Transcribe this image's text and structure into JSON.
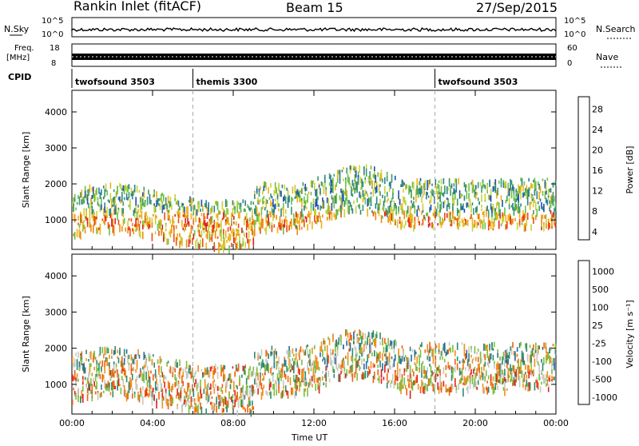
{
  "header": {
    "site": "Rankin Inlet (fitACF)",
    "beam": "Beam 15",
    "date": "27/Sep/2015"
  },
  "aux": {
    "nsky_label": "N.Sky",
    "nsky_ticks": [
      "10^5",
      "10^0"
    ],
    "nsearch_label": "N.Search",
    "nsearch_ticks": [
      "10^5",
      "10^0"
    ],
    "freq_label_1": "Freq.",
    "freq_label_2": "[MHz]",
    "freq_ticks": [
      "18",
      "8"
    ],
    "nave_label": "Nave",
    "nave_ticks": [
      "60",
      "0"
    ],
    "cpid_label": "CPID",
    "cpid_segments": [
      {
        "label": "twofsound 3503",
        "start_h": 0.0
      },
      {
        "label": "themis 3300",
        "start_h": 6.0
      },
      {
        "label": "twofsound 3503",
        "start_h": 18.0
      }
    ]
  },
  "chart_data": [
    {
      "type": "heatmap",
      "title": "",
      "xlabel": "Time UT",
      "ylabel": "Slant Range [km]",
      "xlim": [
        0,
        24
      ],
      "ylim": [
        180,
        4600
      ],
      "xticks": [
        "00:00",
        "04:00",
        "08:00",
        "12:00",
        "16:00",
        "20:00",
        "00:00"
      ],
      "yticks": [
        1000,
        2000,
        3000,
        4000
      ],
      "colorbar": {
        "label": "Power [dB]",
        "ticks": [
          "28",
          "24",
          "20",
          "16",
          "12",
          "8",
          "4"
        ],
        "range": [
          0,
          32
        ]
      },
      "colors": [
        "#1a1aff",
        "#1f4fb0",
        "#2f7f8f",
        "#3c9a6a",
        "#6cc04a",
        "#c8d23a",
        "#f0b01a",
        "#f08a10",
        "#e85010",
        "#e02020"
      ]
    },
    {
      "type": "heatmap",
      "title": "",
      "xlabel": "Time UT",
      "ylabel": "Slant Range [km]",
      "xlim": [
        0,
        24
      ],
      "ylim": [
        180,
        4600
      ],
      "xticks": [
        "00:00",
        "04:00",
        "08:00",
        "12:00",
        "16:00",
        "20:00",
        "00:00"
      ],
      "yticks": [
        1000,
        2000,
        3000,
        4000
      ],
      "colorbar": {
        "label": "Velocity [m s⁻¹]",
        "ticks": [
          "1000",
          "500",
          "100",
          "25",
          "-25",
          "-100",
          "-500",
          "-1000"
        ]
      },
      "colors": [
        "#1a3fd0",
        "#2a6aa0",
        "#2f8a70",
        "#7ac040",
        "#c8c8c0",
        "#f09020",
        "#f06010",
        "#e02020"
      ]
    }
  ]
}
